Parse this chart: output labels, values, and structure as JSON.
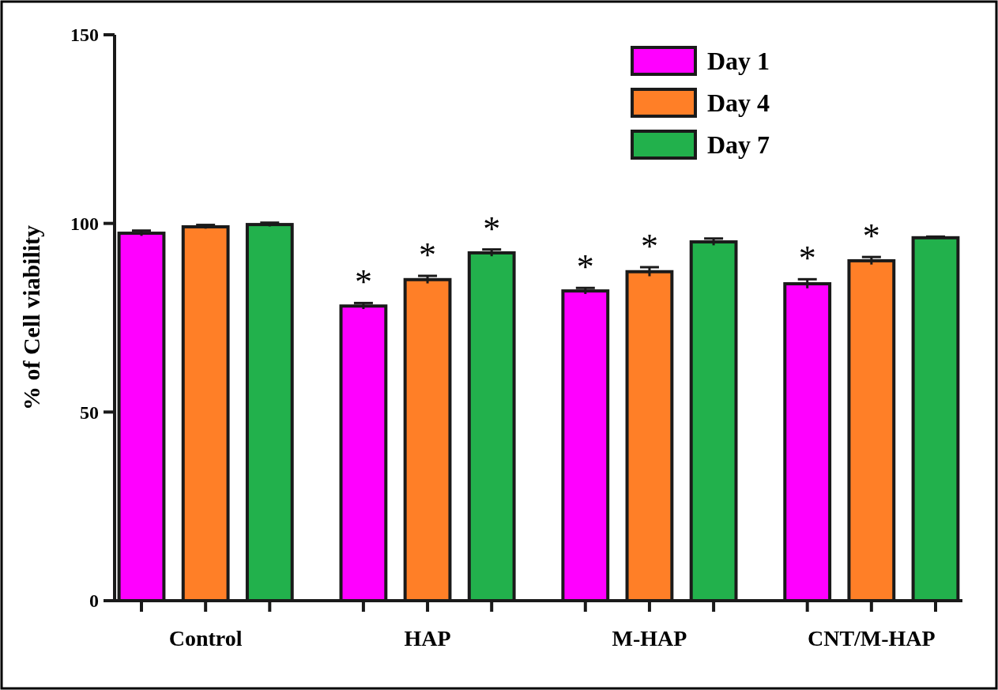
{
  "chart_data": {
    "type": "bar",
    "ylabel": "% of Cell viability",
    "categories": [
      "Control",
      "HAP",
      "M-HAP",
      "CNT/M-HAP"
    ],
    "series": [
      {
        "name": "Day 1",
        "color": "#ff00ff",
        "values": [
          97.4,
          78.1,
          82.1,
          84.0
        ],
        "errors": [
          0.7,
          0.8,
          0.8,
          1.2
        ],
        "value_labels": [
          null,
          "*",
          "*",
          "*"
        ]
      },
      {
        "name": "Day 4",
        "color": "#ff7f27",
        "values": [
          99.1,
          85.1,
          87.2,
          90.1
        ],
        "errors": [
          0.5,
          1.0,
          1.2,
          1.0
        ],
        "value_labels": [
          null,
          "*",
          "*",
          "*"
        ]
      },
      {
        "name": "Day 7",
        "color": "#22b14c",
        "values": [
          99.7,
          92.2,
          95.1,
          96.2
        ],
        "errors": [
          0.5,
          0.9,
          0.9,
          0.3
        ],
        "value_labels": [
          null,
          "*",
          null,
          null
        ]
      }
    ],
    "ylim": [
      0,
      150
    ],
    "yticks": [
      0,
      50,
      100,
      150
    ],
    "legend": "top right",
    "grid": false
  }
}
